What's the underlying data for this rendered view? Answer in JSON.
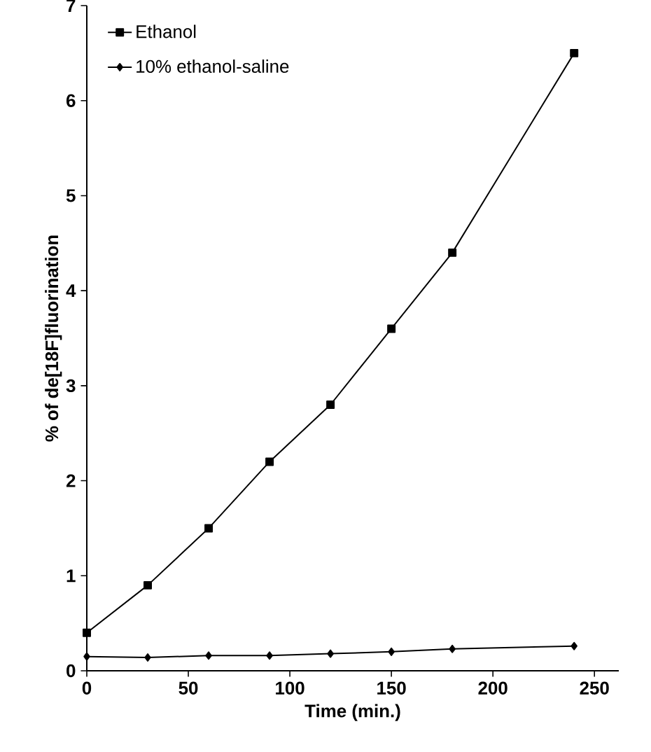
{
  "chart_data": {
    "type": "line",
    "xlabel": "Time (min.)",
    "ylabel": "% of de[18F]fluorination",
    "xlim": [
      0,
      262
    ],
    "ylim": [
      0,
      7
    ],
    "xticks": [
      0,
      50,
      100,
      150,
      200,
      250
    ],
    "yticks": [
      0,
      1,
      2,
      3,
      4,
      5,
      6,
      7
    ],
    "grid": false,
    "legend": "top left",
    "line_style": "solid",
    "x": [
      0,
      30,
      60,
      90,
      120,
      150,
      180,
      240
    ],
    "series": [
      {
        "name": "Ethanol",
        "color": "#000000",
        "marker": "square",
        "values": [
          0.4,
          0.9,
          1.5,
          2.2,
          2.8,
          3.6,
          4.4,
          6.5
        ]
      },
      {
        "name": "10% ethanol-saline",
        "color": "#000000",
        "marker": "diamond",
        "values": [
          0.15,
          0.14,
          0.16,
          0.16,
          0.18,
          0.2,
          0.23,
          0.26
        ]
      }
    ]
  }
}
